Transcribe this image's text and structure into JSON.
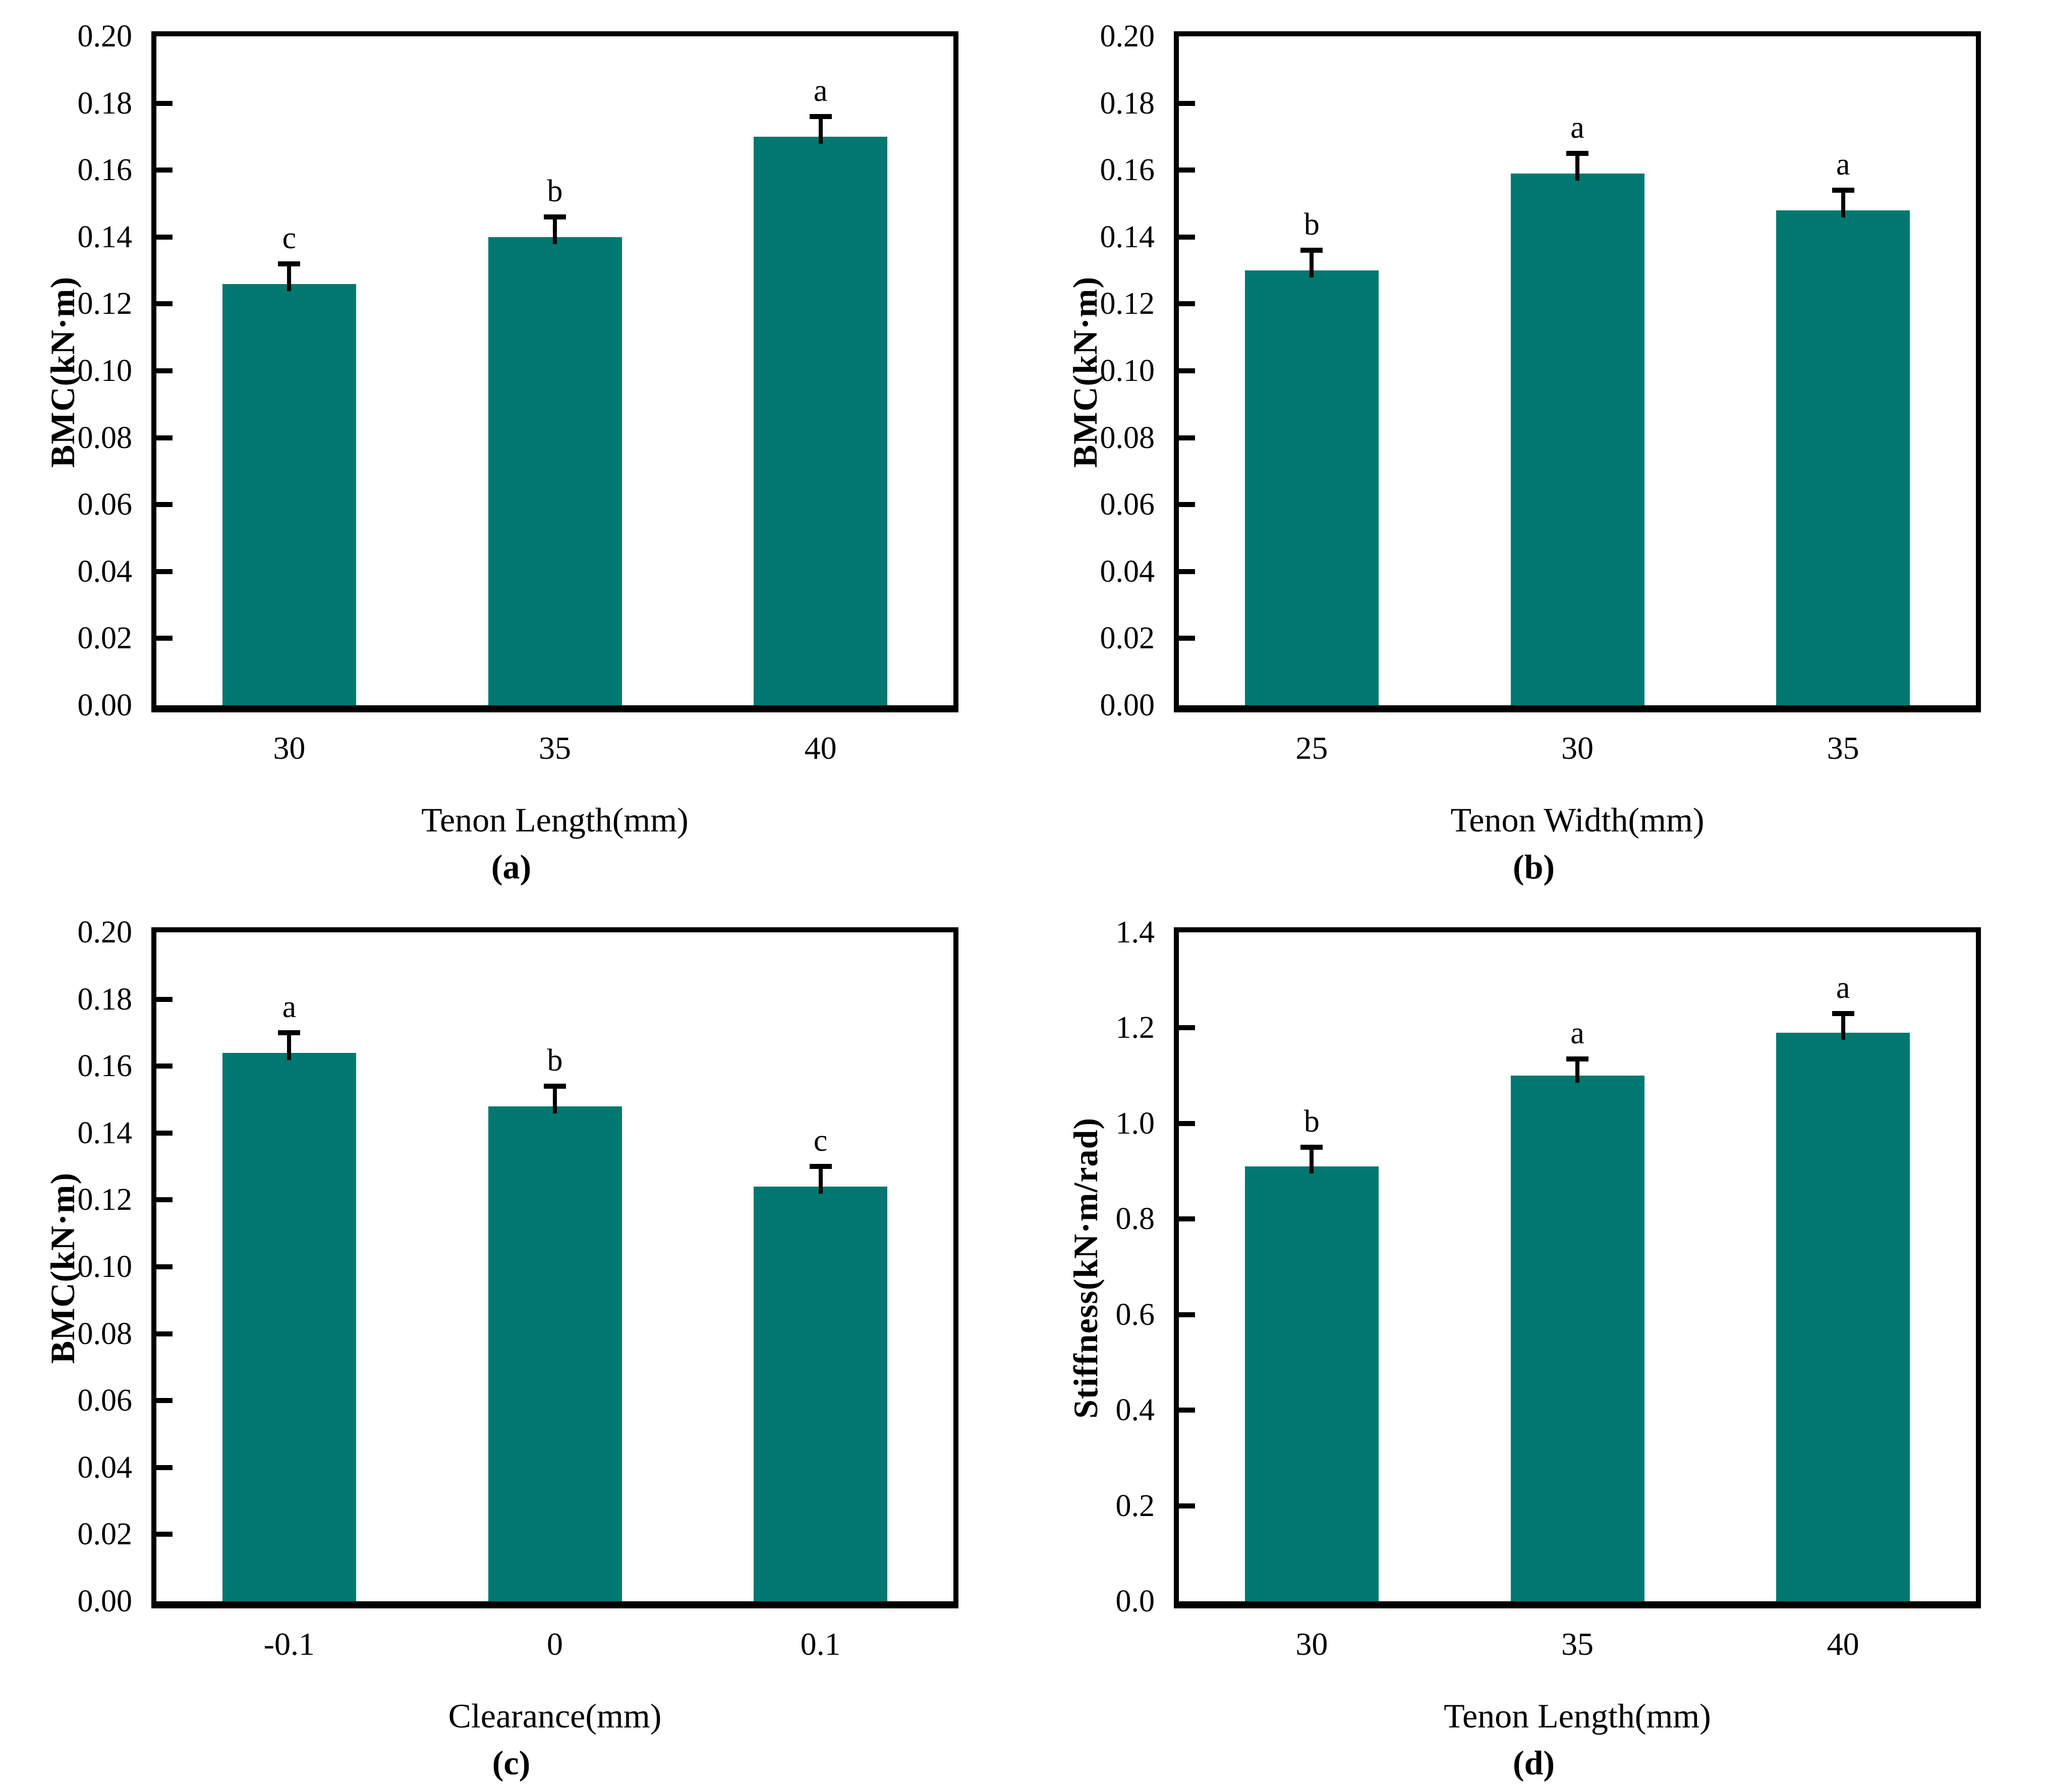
{
  "figure": {
    "background_color": "#ffffff",
    "axis_color": "#000000",
    "text_color": "#000000",
    "bar_color": "#00786F",
    "panel_count": 4
  },
  "chart_data": [
    {
      "panel_label": "(a)",
      "type": "bar",
      "title": "",
      "xlabel": "Tenon Length(mm)",
      "ylabel": "BMC(kN·m)",
      "categories": [
        "30",
        "35",
        "40"
      ],
      "values": [
        0.126,
        0.14,
        0.17
      ],
      "errors": [
        0.006,
        0.006,
        0.006
      ],
      "significance_letters": [
        "c",
        "b",
        "a"
      ],
      "ylim": [
        0,
        0.2
      ],
      "yticks": [
        "0.00",
        "0.02",
        "0.04",
        "0.06",
        "0.08",
        "0.10",
        "0.12",
        "0.14",
        "0.16",
        "0.18",
        "0.20"
      ],
      "grid": false,
      "legend": "none",
      "bar_color": "#00786F"
    },
    {
      "panel_label": "(b)",
      "type": "bar",
      "title": "",
      "xlabel": "Tenon Width(mm)",
      "ylabel": "BMC(kN·m)",
      "categories": [
        "25",
        "30",
        "35"
      ],
      "values": [
        0.13,
        0.159,
        0.148
      ],
      "errors": [
        0.006,
        0.006,
        0.006
      ],
      "significance_letters": [
        "b",
        "a",
        "a"
      ],
      "ylim": [
        0,
        0.2
      ],
      "yticks": [
        "0.00",
        "0.02",
        "0.04",
        "0.06",
        "0.08",
        "0.10",
        "0.12",
        "0.14",
        "0.16",
        "0.18",
        "0.20"
      ],
      "grid": false,
      "legend": "none",
      "bar_color": "#00786F"
    },
    {
      "panel_label": "(c)",
      "type": "bar",
      "title": "",
      "xlabel": "Clearance(mm)",
      "ylabel": "BMC(kN·m)",
      "categories": [
        "-0.1",
        "0",
        "0.1"
      ],
      "values": [
        0.164,
        0.148,
        0.124
      ],
      "errors": [
        0.006,
        0.006,
        0.006
      ],
      "significance_letters": [
        "a",
        "b",
        "c"
      ],
      "ylim": [
        0,
        0.2
      ],
      "yticks": [
        "0.00",
        "0.02",
        "0.04",
        "0.06",
        "0.08",
        "0.10",
        "0.12",
        "0.14",
        "0.16",
        "0.18",
        "0.20"
      ],
      "grid": false,
      "legend": "none",
      "bar_color": "#00786F"
    },
    {
      "panel_label": "(d)",
      "type": "bar",
      "title": "",
      "xlabel": "Tenon Length(mm)",
      "ylabel": "Stiffness(kN·m/rad)",
      "categories": [
        "30",
        "35",
        "40"
      ],
      "values": [
        0.91,
        1.1,
        1.19
      ],
      "errors": [
        0.04,
        0.035,
        0.04
      ],
      "significance_letters": [
        "b",
        "a",
        "a"
      ],
      "ylim": [
        0,
        1.4
      ],
      "yticks": [
        "0.0",
        "0.2",
        "0.4",
        "0.6",
        "0.8",
        "1.0",
        "1.2",
        "1.4"
      ],
      "grid": false,
      "legend": "none",
      "bar_color": "#00786F"
    }
  ]
}
